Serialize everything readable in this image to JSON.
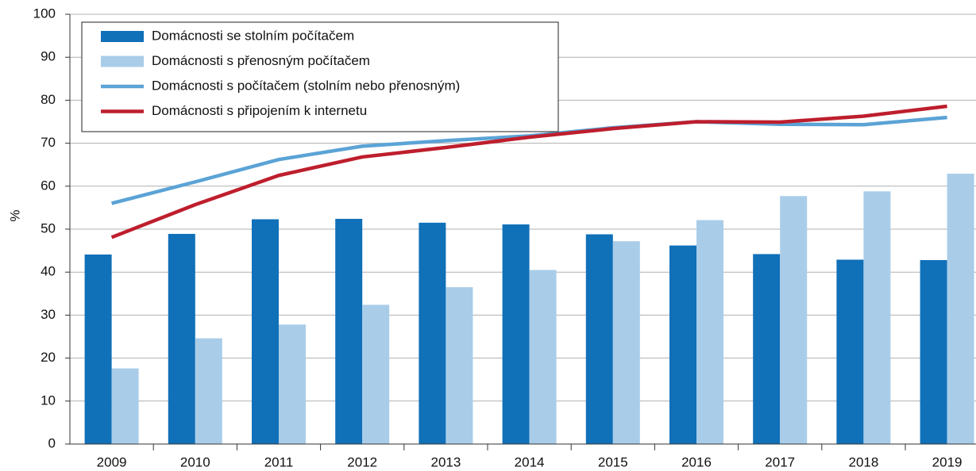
{
  "chart_data": {
    "type": "bar",
    "y_label": "%",
    "categories": [
      "2009",
      "2010",
      "2011",
      "2012",
      "2013",
      "2014",
      "2015",
      "2016",
      "2017",
      "2018",
      "2019"
    ],
    "ylim": [
      0,
      100
    ],
    "yticks": [
      0,
      10,
      20,
      30,
      40,
      50,
      60,
      70,
      80,
      90,
      100
    ],
    "grid": true,
    "legend": "upper left",
    "series": [
      {
        "name": "Domácnosti se stolním počítačem",
        "type": "bar",
        "color": "#1070b8",
        "values": [
          44.1,
          48.9,
          52.3,
          52.4,
          51.5,
          51.1,
          48.8,
          46.2,
          44.2,
          42.9,
          42.8
        ]
      },
      {
        "name": "Domácnosti s přenosným počítačem",
        "type": "bar",
        "color": "#a9cde9",
        "values": [
          17.6,
          24.6,
          27.8,
          32.4,
          36.5,
          40.5,
          47.2,
          52.1,
          57.7,
          58.8,
          62.9
        ]
      },
      {
        "name": "Domácnosti s počítačem (stolním nebo přenosným)",
        "type": "line",
        "color": "#5ba3d6",
        "values": [
          56.0,
          61.0,
          66.2,
          69.3,
          70.6,
          71.7,
          73.6,
          75.0,
          74.4,
          74.3,
          76.0
        ]
      },
      {
        "name": "Domácnosti s připojením k internetu",
        "type": "line",
        "color": "#be1e2d",
        "values": [
          48.1,
          55.7,
          62.5,
          66.8,
          69.0,
          71.4,
          73.4,
          75.0,
          74.9,
          76.3,
          78.6
        ]
      }
    ]
  }
}
